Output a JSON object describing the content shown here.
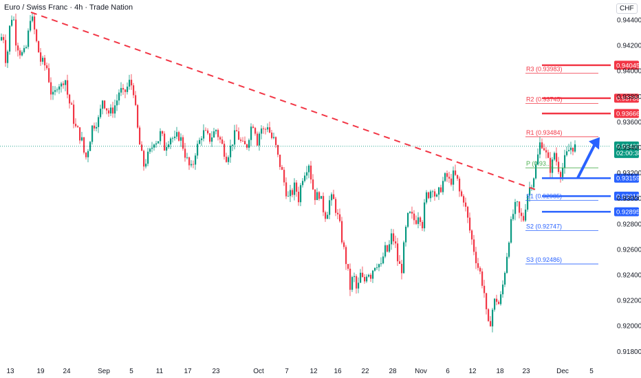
{
  "header": {
    "title": "Euro / Swiss Franc · 4h · Trade Nation",
    "currency": "CHF"
  },
  "chart_data": {
    "type": "candlestick",
    "title": "Euro / Swiss Franc · 4h · Trade Nation",
    "currency": "CHF",
    "y_ticks": [
      0.944,
      0.942,
      0.94,
      0.938,
      0.936,
      0.934,
      0.932,
      0.93,
      0.928,
      0.926,
      0.924,
      0.922,
      0.92,
      0.918
    ],
    "x_ticks": [
      "13",
      "19",
      "24",
      "Sep",
      "5",
      "11",
      "17",
      "23",
      "Oct",
      "7",
      "12",
      "16",
      "22",
      "28",
      "Nov",
      "6",
      "12",
      "18",
      "23",
      "Dec",
      "5"
    ],
    "colors": {
      "up": "#089981",
      "down": "#f23645",
      "resistance": "#f23645",
      "support": "#2962ff"
    },
    "current_price": {
      "value": "0.93409",
      "countdown": "02:00:38"
    },
    "levels": [
      {
        "value": 0.94045,
        "label": "0.94045",
        "role": "resistance"
      },
      {
        "value": 0.93786,
        "label": "0.93786",
        "role": "resistance"
      },
      {
        "value": 0.93666,
        "label": "0.93666",
        "role": "resistance"
      },
      {
        "value": 0.93159,
        "label": "0.93159",
        "role": "support"
      },
      {
        "value": 0.93018,
        "label": "0.93018",
        "role": "support"
      },
      {
        "value": 0.92895,
        "label": "0.92895",
        "role": "support"
      }
    ],
    "pivots": [
      {
        "label": "R3 (0.93983)",
        "value": 0.93983,
        "role": "resistance"
      },
      {
        "label": "R2 (0.93745)",
        "value": 0.93745,
        "role": "resistance"
      },
      {
        "label": "R1 (0.93484)",
        "value": 0.93484,
        "role": "resistance"
      },
      {
        "label": "P (0.93...)",
        "value": 0.9324,
        "role": "pivot"
      },
      {
        "label": "S1 (0.92985)",
        "value": 0.92985,
        "role": "support"
      },
      {
        "label": "S2 (0.92747)",
        "value": 0.92747,
        "role": "support"
      },
      {
        "label": "S3 (0.92486)",
        "value": 0.92486,
        "role": "support"
      }
    ],
    "trendline": {
      "from": {
        "date": "Aug 19",
        "price": 0.9446
      },
      "to": {
        "date": "Nov 21",
        "price": 0.9307
      },
      "style": "dashed"
    },
    "arrow": {
      "from": {
        "date": "Nov 29",
        "price": 0.9316
      },
      "to": {
        "date": "Dec 3",
        "price": 0.9348
      }
    },
    "price_path": [
      [
        0,
        0.9424
      ],
      [
        3,
        0.9432
      ],
      [
        7,
        0.941
      ],
      [
        10,
        0.9416
      ],
      [
        14,
        0.944
      ],
      [
        18,
        0.9445
      ],
      [
        22,
        0.9424
      ],
      [
        28,
        0.9415
      ],
      [
        33,
        0.9412
      ],
      [
        38,
        0.942
      ],
      [
        43,
        0.9443
      ],
      [
        47,
        0.9438
      ],
      [
        52,
        0.9422
      ],
      [
        58,
        0.9408
      ],
      [
        63,
        0.9405
      ],
      [
        68,
        0.9402
      ],
      [
        72,
        0.9385
      ],
      [
        77,
        0.9378
      ],
      [
        83,
        0.9392
      ],
      [
        88,
        0.9388
      ],
      [
        93,
        0.9397
      ],
      [
        98,
        0.9378
      ],
      [
        103,
        0.937
      ],
      [
        108,
        0.9356
      ],
      [
        113,
        0.9352
      ],
      [
        118,
        0.9345
      ],
      [
        123,
        0.933
      ],
      [
        128,
        0.9342
      ],
      [
        133,
        0.9356
      ],
      [
        138,
        0.936
      ],
      [
        143,
        0.9362
      ],
      [
        148,
        0.9378
      ],
      [
        153,
        0.9372
      ],
      [
        158,
        0.9366
      ],
      [
        163,
        0.937
      ],
      [
        168,
        0.9375
      ],
      [
        173,
        0.9386
      ],
      [
        178,
        0.9381
      ],
      [
        183,
        0.9386
      ],
      [
        188,
        0.9392
      ],
      [
        193,
        0.9385
      ],
      [
        198,
        0.9358
      ],
      [
        203,
        0.9338
      ],
      [
        208,
        0.9326
      ],
      [
        213,
        0.9332
      ],
      [
        218,
        0.9337
      ],
      [
        223,
        0.9346
      ],
      [
        228,
        0.9345
      ],
      [
        233,
        0.9352
      ],
      [
        238,
        0.934
      ],
      [
        243,
        0.9346
      ],
      [
        248,
        0.9349
      ],
      [
        253,
        0.9345
      ],
      [
        258,
        0.935
      ],
      [
        263,
        0.9345
      ],
      [
        268,
        0.9335
      ],
      [
        273,
        0.9326
      ],
      [
        278,
        0.9322
      ],
      [
        283,
        0.9337
      ],
      [
        288,
        0.9343
      ],
      [
        293,
        0.9352
      ],
      [
        298,
        0.935
      ],
      [
        303,
        0.9346
      ],
      [
        308,
        0.935
      ],
      [
        313,
        0.9354
      ],
      [
        318,
        0.9347
      ],
      [
        323,
        0.934
      ],
      [
        328,
        0.9333
      ],
      [
        333,
        0.9338
      ],
      [
        338,
        0.9347
      ],
      [
        343,
        0.9352
      ],
      [
        348,
        0.9345
      ],
      [
        353,
        0.934
      ],
      [
        358,
        0.9342
      ],
      [
        363,
        0.9355
      ],
      [
        368,
        0.936
      ],
      [
        373,
        0.9345
      ],
      [
        378,
        0.9356
      ],
      [
        383,
        0.9352
      ],
      [
        388,
        0.9358
      ],
      [
        393,
        0.9348
      ],
      [
        398,
        0.9345
      ],
      [
        403,
        0.9332
      ],
      [
        408,
        0.9323
      ],
      [
        413,
        0.931
      ],
      [
        418,
        0.93
      ],
      [
        423,
        0.9304
      ],
      [
        428,
        0.931
      ],
      [
        433,
        0.93
      ],
      [
        438,
        0.9316
      ],
      [
        443,
        0.9323
      ],
      [
        448,
        0.9328
      ],
      [
        453,
        0.931
      ],
      [
        458,
        0.93
      ],
      [
        463,
        0.9304
      ],
      [
        468,
        0.9293
      ],
      [
        473,
        0.9286
      ],
      [
        478,
        0.9298
      ],
      [
        483,
        0.93
      ],
      [
        488,
        0.929
      ],
      [
        493,
        0.9278
      ],
      [
        498,
        0.9262
      ],
      [
        503,
        0.9248
      ],
      [
        508,
        0.923
      ],
      [
        513,
        0.924
      ],
      [
        518,
        0.9226
      ],
      [
        523,
        0.924
      ],
      [
        528,
        0.9233
      ],
      [
        533,
        0.9244
      ],
      [
        538,
        0.924
      ],
      [
        543,
        0.9248
      ],
      [
        548,
        0.925
      ],
      [
        553,
        0.9246
      ],
      [
        558,
        0.926
      ],
      [
        563,
        0.9258
      ],
      [
        568,
        0.927
      ],
      [
        573,
        0.9266
      ],
      [
        578,
        0.9248
      ],
      [
        583,
        0.9245
      ],
      [
        588,
        0.9272
      ],
      [
        593,
        0.9288
      ],
      [
        598,
        0.9285
      ],
      [
        603,
        0.9282
      ],
      [
        608,
        0.929
      ],
      [
        613,
        0.928
      ],
      [
        618,
        0.9302
      ],
      [
        623,
        0.9304
      ],
      [
        628,
        0.931
      ],
      [
        633,
        0.9298
      ],
      [
        638,
        0.9306
      ],
      [
        643,
        0.9313
      ],
      [
        648,
        0.9318
      ],
      [
        653,
        0.9312
      ],
      [
        658,
        0.9318
      ],
      [
        663,
        0.9316
      ],
      [
        668,
        0.9302
      ],
      [
        673,
        0.93
      ],
      [
        678,
        0.9286
      ],
      [
        683,
        0.9272
      ],
      [
        688,
        0.926
      ],
      [
        693,
        0.9248
      ],
      [
        698,
        0.924
      ],
      [
        703,
        0.9226
      ],
      [
        708,
        0.9198
      ],
      [
        712,
        0.9204
      ],
      [
        716,
        0.9216
      ],
      [
        720,
        0.9222
      ],
      [
        725,
        0.9216
      ],
      [
        730,
        0.9232
      ],
      [
        735,
        0.9252
      ],
      [
        740,
        0.9274
      ],
      [
        745,
        0.9288
      ],
      [
        750,
        0.9296
      ],
      [
        755,
        0.9285
      ],
      [
        760,
        0.9284
      ],
      [
        765,
        0.9302
      ],
      [
        770,
        0.931
      ],
      [
        775,
        0.9318
      ],
      [
        780,
        0.933
      ],
      [
        785,
        0.9346
      ],
      [
        790,
        0.934
      ],
      [
        795,
        0.933
      ],
      [
        800,
        0.9322
      ],
      [
        805,
        0.9336
      ],
      [
        810,
        0.9325
      ],
      [
        815,
        0.932
      ],
      [
        820,
        0.933
      ],
      [
        825,
        0.9337
      ],
      [
        830,
        0.9341
      ],
      [
        835,
        0.934
      ]
    ]
  }
}
